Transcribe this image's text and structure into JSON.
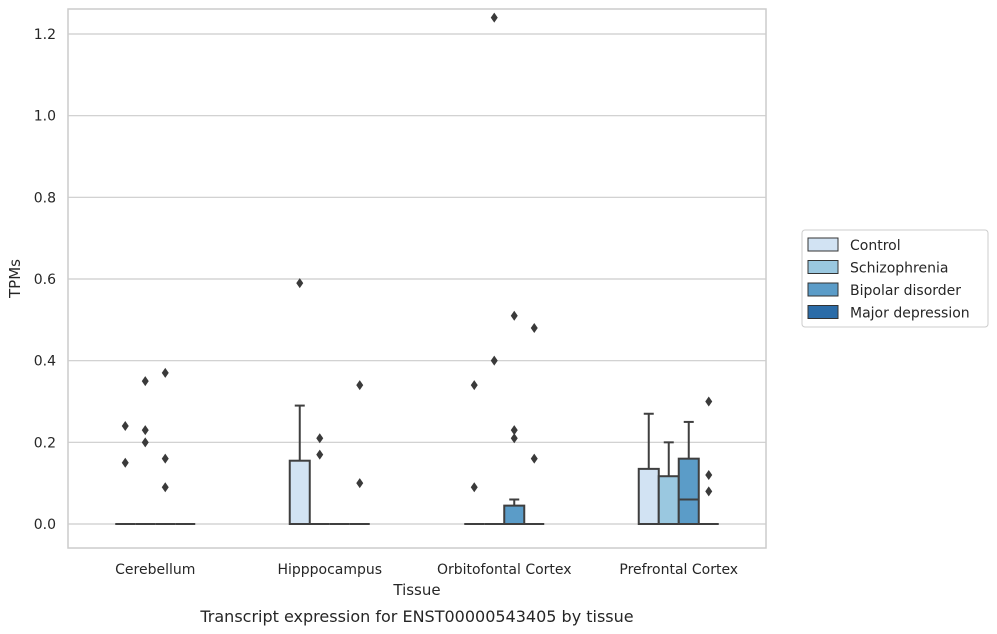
{
  "chart_data": {
    "type": "box",
    "xlabel": "Tissue",
    "ylabel": "TPMs",
    "caption": "Transcript expression for ENST00000543405 by tissue",
    "ylim": [
      -0.06,
      1.3
    ],
    "yticks": [
      0.0,
      0.2,
      0.4,
      0.6,
      0.8,
      1.0,
      1.2
    ],
    "ytick_labels": [
      "0.0",
      "0.2",
      "0.4",
      "0.6",
      "0.8",
      "1.0",
      "1.2"
    ],
    "grid": "horizontal",
    "legend_placement": "right",
    "categories": [
      "Cerebellum",
      "Hipppocampus",
      "Orbitofontal Cortex",
      "Prefrontal Cortex"
    ],
    "series": [
      {
        "name": "Control",
        "color": "#d2e3f3",
        "boxes": [
          {
            "q1": 0,
            "median": 0,
            "q3": 0,
            "whisker_low": 0,
            "whisker_high": 0,
            "outliers": [
              0.24,
              0.15
            ]
          },
          {
            "q1": 0,
            "median": 0,
            "q3": 0.155,
            "whisker_low": 0,
            "whisker_high": 0.29,
            "outliers": [
              0.59
            ]
          },
          {
            "q1": 0,
            "median": 0,
            "q3": 0,
            "whisker_low": 0,
            "whisker_high": 0,
            "outliers": [
              0.34,
              0.09
            ]
          },
          {
            "q1": 0,
            "median": 0,
            "q3": 0.135,
            "whisker_low": 0,
            "whisker_high": 0.27,
            "outliers": []
          }
        ]
      },
      {
        "name": "Schizophrenia",
        "color": "#9ac8e0",
        "boxes": [
          {
            "q1": 0,
            "median": 0,
            "q3": 0,
            "whisker_low": 0,
            "whisker_high": 0,
            "outliers": [
              0.35,
              0.23,
              0.2
            ]
          },
          {
            "q1": 0,
            "median": 0,
            "q3": 0,
            "whisker_low": 0,
            "whisker_high": 0,
            "outliers": [
              0.21,
              0.17
            ]
          },
          {
            "q1": 0,
            "median": 0,
            "q3": 0,
            "whisker_low": 0,
            "whisker_high": 0,
            "outliers": [
              1.24,
              0.4
            ]
          },
          {
            "q1": 0,
            "median": 0,
            "q3": 0.117,
            "whisker_low": 0,
            "whisker_high": 0.2,
            "outliers": []
          }
        ]
      },
      {
        "name": "Bipolar disorder",
        "color": "#5b9cc8",
        "boxes": [
          {
            "q1": 0,
            "median": 0,
            "q3": 0,
            "whisker_low": 0,
            "whisker_high": 0,
            "outliers": [
              0.37,
              0.16,
              0.09
            ]
          },
          {
            "q1": 0,
            "median": 0,
            "q3": 0,
            "whisker_low": 0,
            "whisker_high": 0,
            "outliers": []
          },
          {
            "q1": 0,
            "median": 0,
            "q3": 0.045,
            "whisker_low": 0,
            "whisker_high": 0.06,
            "outliers": [
              0.51,
              0.23,
              0.21
            ]
          },
          {
            "q1": 0,
            "median": 0.06,
            "q3": 0.16,
            "whisker_low": 0,
            "whisker_high": 0.25,
            "outliers": []
          }
        ]
      },
      {
        "name": "Major depression",
        "color": "#2b6ca8",
        "boxes": [
          {
            "q1": 0,
            "median": 0,
            "q3": 0,
            "whisker_low": 0,
            "whisker_high": 0,
            "outliers": []
          },
          {
            "q1": 0,
            "median": 0,
            "q3": 0,
            "whisker_low": 0,
            "whisker_high": 0,
            "outliers": [
              0.34,
              0.1
            ]
          },
          {
            "q1": 0,
            "median": 0,
            "q3": 0,
            "whisker_low": 0,
            "whisker_high": 0,
            "outliers": [
              0.48,
              0.16
            ]
          },
          {
            "q1": 0,
            "median": 0,
            "q3": 0,
            "whisker_low": 0,
            "whisker_high": 0,
            "outliers": [
              0.3,
              0.12,
              0.08
            ]
          }
        ]
      }
    ]
  }
}
